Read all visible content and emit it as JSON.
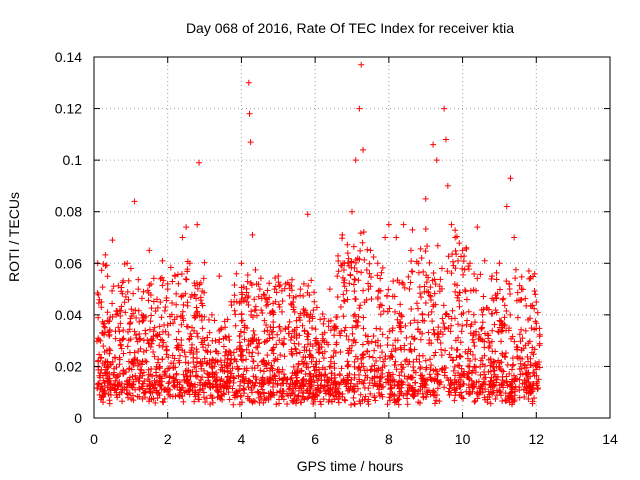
{
  "chart_data": {
    "type": "scatter",
    "title": "Day 068 of 2016, Rate Of TEC Index for receiver ktia",
    "xlabel": "GPS time / hours",
    "ylabel": "ROTI / TECUs",
    "xlim": [
      0,
      14
    ],
    "ylim": [
      0,
      0.14
    ],
    "xticks": [
      0,
      2,
      4,
      6,
      8,
      10,
      12,
      14
    ],
    "xtick_labels": [
      "0",
      "2",
      "4",
      "6",
      "8",
      "10",
      "12",
      "14"
    ],
    "yticks": [
      0,
      0.02,
      0.04,
      0.06,
      0.08,
      0.1,
      0.12,
      0.14
    ],
    "ytick_labels": [
      "0",
      "0.02",
      "0.04",
      "0.06",
      "0.08",
      "0.1",
      "0.12",
      "0.14"
    ],
    "grid": true,
    "marker": "plus",
    "color": "#ff0000",
    "series": [
      {
        "name": "ROTI",
        "description_of_density": "dense cloud of points from ~0.1 h to ~12.1 h, mostly between 0.005 and 0.05 TECU",
        "x": [
          0.1,
          0.2,
          0.3,
          0.4,
          0.5,
          0.6,
          0.7,
          0.8,
          0.9,
          1.0,
          1.1,
          1.2,
          1.3,
          1.5,
          1.6,
          1.8,
          2.0,
          2.2,
          2.4,
          2.5,
          2.6,
          2.8,
          2.85,
          3.0,
          3.2,
          3.4,
          3.6,
          3.8,
          4.0,
          4.2,
          4.22,
          4.25,
          4.3,
          4.5,
          4.7,
          4.9,
          5.0,
          5.2,
          5.4,
          5.6,
          5.8,
          6.0,
          6.2,
          6.4,
          6.6,
          6.8,
          7.0,
          7.1,
          7.2,
          7.25,
          7.3,
          7.5,
          7.7,
          7.9,
          8.0,
          8.2,
          8.4,
          8.6,
          8.8,
          9.0,
          9.2,
          9.3,
          9.5,
          9.55,
          9.6,
          9.7,
          9.8,
          10.0,
          10.2,
          10.4,
          10.6,
          10.8,
          11.0,
          11.2,
          11.3,
          11.4,
          11.6,
          11.8,
          12.0
        ],
        "y": [
          0.06,
          0.045,
          0.035,
          0.02,
          0.069,
          0.04,
          0.03,
          0.025,
          0.06,
          0.058,
          0.084,
          0.05,
          0.04,
          0.065,
          0.03,
          0.045,
          0.05,
          0.055,
          0.07,
          0.074,
          0.06,
          0.075,
          0.099,
          0.03,
          0.04,
          0.055,
          0.02,
          0.045,
          0.06,
          0.13,
          0.118,
          0.107,
          0.071,
          0.05,
          0.045,
          0.05,
          0.055,
          0.052,
          0.045,
          0.05,
          0.079,
          0.03,
          0.025,
          0.05,
          0.055,
          0.06,
          0.08,
          0.1,
          0.12,
          0.137,
          0.104,
          0.065,
          0.06,
          0.07,
          0.075,
          0.07,
          0.075,
          0.065,
          0.06,
          0.085,
          0.106,
          0.1,
          0.12,
          0.108,
          0.09,
          0.075,
          0.07,
          0.065,
          0.06,
          0.074,
          0.061,
          0.055,
          0.06,
          0.082,
          0.093,
          0.07,
          0.05,
          0.057,
          0.045
        ]
      }
    ]
  }
}
